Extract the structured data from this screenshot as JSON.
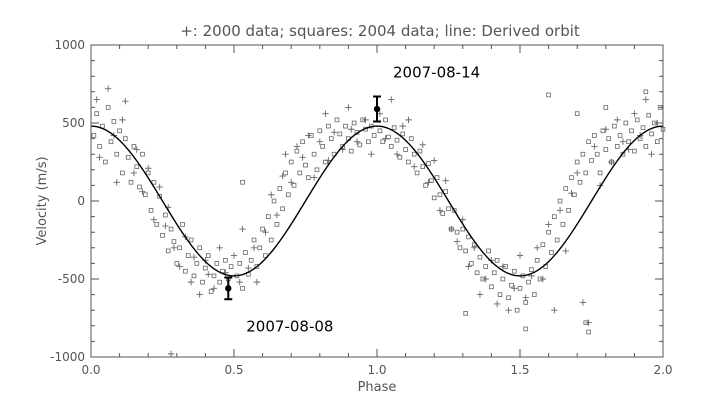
{
  "chart_data": {
    "type": "scatter",
    "title": "+: 2000 data; squares: 2004 data; line: Derived orbit",
    "xlabel": "Phase",
    "ylabel": "Velocity (m/s)",
    "xlim": [
      0.0,
      2.0
    ],
    "ylim": [
      -1000,
      1000
    ],
    "xticks": [
      {
        "value": 0.0,
        "label": "0.0"
      },
      {
        "value": 0.5,
        "label": "0.5"
      },
      {
        "value": 1.0,
        "label": "1.0"
      },
      {
        "value": 1.5,
        "label": "1.5"
      },
      {
        "value": 2.0,
        "label": "2.0"
      }
    ],
    "yticks": [
      {
        "value": 1000,
        "label": "1000"
      },
      {
        "value": 500,
        "label": "500"
      },
      {
        "value": 0,
        "label": "0"
      },
      {
        "value": -500,
        "label": "-500"
      },
      {
        "value": -1000,
        "label": "-1000"
      }
    ],
    "grid": false,
    "orbit": {
      "amplitude": 480,
      "offset": 0,
      "phase_of_max": 0.0,
      "period_in_phase": 1.0
    },
    "series": [
      {
        "name": "2000 data",
        "marker": "plus",
        "points": [
          [
            0.02,
            650
          ],
          [
            0.03,
            280
          ],
          [
            0.06,
            720
          ],
          [
            0.08,
            420
          ],
          [
            0.09,
            120
          ],
          [
            0.11,
            520
          ],
          [
            0.12,
            640
          ],
          [
            0.15,
            180
          ],
          [
            0.16,
            330
          ],
          [
            0.18,
            60
          ],
          [
            0.2,
            210
          ],
          [
            0.22,
            -120
          ],
          [
            0.24,
            90
          ],
          [
            0.26,
            -160
          ],
          [
            0.27,
            -40
          ],
          [
            0.29,
            -300
          ],
          [
            0.31,
            -420
          ],
          [
            0.33,
            -230
          ],
          [
            0.35,
            -520
          ],
          [
            0.36,
            -360
          ],
          [
            0.38,
            -600
          ],
          [
            0.4,
            -380
          ],
          [
            0.41,
            -470
          ],
          [
            0.43,
            -560
          ],
          [
            0.45,
            -300
          ],
          [
            0.47,
            -460
          ],
          [
            0.5,
            -350
          ],
          [
            0.52,
            -520
          ],
          [
            0.53,
            -180
          ],
          [
            0.55,
            -430
          ],
          [
            0.57,
            -300
          ],
          [
            0.58,
            -520
          ],
          [
            0.61,
            -200
          ],
          [
            0.63,
            40
          ],
          [
            0.65,
            -90
          ],
          [
            0.67,
            160
          ],
          [
            0.68,
            300
          ],
          [
            0.7,
            120
          ],
          [
            0.72,
            350
          ],
          [
            0.74,
            280
          ],
          [
            0.76,
            420
          ],
          [
            0.78,
            150
          ],
          [
            0.8,
            380
          ],
          [
            0.82,
            560
          ],
          [
            0.83,
            260
          ],
          [
            0.85,
            440
          ],
          [
            0.88,
            330
          ],
          [
            0.9,
            600
          ],
          [
            0.91,
            460
          ],
          [
            0.93,
            380
          ],
          [
            0.96,
            520
          ],
          [
            0.98,
            300
          ],
          [
            1.01,
            560
          ],
          [
            1.03,
            400
          ],
          [
            1.05,
            650
          ],
          [
            1.07,
            300
          ],
          [
            1.09,
            480
          ],
          [
            1.11,
            520
          ],
          [
            1.13,
            220
          ],
          [
            1.16,
            360
          ],
          [
            1.18,
            120
          ],
          [
            1.2,
            260
          ],
          [
            1.22,
            -60
          ],
          [
            1.24,
            130
          ],
          [
            1.26,
            -180
          ],
          [
            1.28,
            -260
          ],
          [
            1.3,
            -120
          ],
          [
            1.32,
            -420
          ],
          [
            1.34,
            -300
          ],
          [
            1.36,
            -600
          ],
          [
            1.38,
            -500
          ],
          [
            1.4,
            -380
          ],
          [
            1.42,
            -660
          ],
          [
            1.44,
            -420
          ],
          [
            1.46,
            -700
          ],
          [
            1.48,
            -560
          ],
          [
            1.5,
            -350
          ],
          [
            1.52,
            -620
          ],
          [
            1.54,
            -480
          ],
          [
            1.56,
            -300
          ],
          [
            1.58,
            -500
          ],
          [
            1.6,
            -150
          ],
          [
            1.62,
            -700
          ],
          [
            1.64,
            -60
          ],
          [
            1.66,
            -320
          ],
          [
            1.68,
            50
          ],
          [
            1.7,
            180
          ],
          [
            1.72,
            -650
          ],
          [
            1.74,
            -780
          ],
          [
            1.76,
            350
          ],
          [
            1.78,
            100
          ],
          [
            1.8,
            460
          ],
          [
            1.82,
            250
          ],
          [
            1.84,
            520
          ],
          [
            1.86,
            380
          ],
          [
            1.88,
            330
          ],
          [
            1.9,
            560
          ],
          [
            1.92,
            420
          ],
          [
            1.94,
            650
          ],
          [
            1.96,
            300
          ],
          [
            1.98,
            500
          ],
          [
            0.28,
            -980
          ]
        ]
      },
      {
        "name": "2004 data",
        "marker": "square",
        "points": [
          [
            0.01,
            420
          ],
          [
            0.02,
            560
          ],
          [
            0.03,
            350
          ],
          [
            0.04,
            480
          ],
          [
            0.05,
            250
          ],
          [
            0.06,
            600
          ],
          [
            0.07,
            380
          ],
          [
            0.08,
            510
          ],
          [
            0.09,
            300
          ],
          [
            0.1,
            450
          ],
          [
            0.11,
            180
          ],
          [
            0.12,
            400
          ],
          [
            0.13,
            280
          ],
          [
            0.14,
            120
          ],
          [
            0.15,
            350
          ],
          [
            0.16,
            220
          ],
          [
            0.17,
            90
          ],
          [
            0.18,
            300
          ],
          [
            0.19,
            40
          ],
          [
            0.2,
            180
          ],
          [
            0.21,
            -60
          ],
          [
            0.22,
            120
          ],
          [
            0.23,
            -150
          ],
          [
            0.24,
            30
          ],
          [
            0.25,
            -220
          ],
          [
            0.26,
            -90
          ],
          [
            0.27,
            -320
          ],
          [
            0.28,
            -180
          ],
          [
            0.29,
            -260
          ],
          [
            0.3,
            -400
          ],
          [
            0.31,
            -300
          ],
          [
            0.32,
            -150
          ],
          [
            0.33,
            -450
          ],
          [
            0.34,
            -350
          ],
          [
            0.35,
            -250
          ],
          [
            0.36,
            -480
          ],
          [
            0.37,
            -400
          ],
          [
            0.38,
            -300
          ],
          [
            0.39,
            -520
          ],
          [
            0.4,
            -430
          ],
          [
            0.41,
            -350
          ],
          [
            0.42,
            -580
          ],
          [
            0.43,
            -480
          ],
          [
            0.44,
            -400
          ],
          [
            0.45,
            -520
          ],
          [
            0.46,
            -450
          ],
          [
            0.47,
            -380
          ],
          [
            0.48,
            -500
          ],
          [
            0.49,
            -420
          ],
          [
            0.51,
            -480
          ],
          [
            0.52,
            -400
          ],
          [
            0.53,
            -560
          ],
          [
            0.54,
            -330
          ],
          [
            0.55,
            -470
          ],
          [
            0.56,
            -380
          ],
          [
            0.57,
            -250
          ],
          [
            0.58,
            -420
          ],
          [
            0.59,
            -300
          ],
          [
            0.6,
            -180
          ],
          [
            0.61,
            -350
          ],
          [
            0.62,
            -100
          ],
          [
            0.63,
            -250
          ],
          [
            0.64,
            0
          ],
          [
            0.65,
            -150
          ],
          [
            0.66,
            80
          ],
          [
            0.67,
            -50
          ],
          [
            0.68,
            180
          ],
          [
            0.69,
            40
          ],
          [
            0.7,
            250
          ],
          [
            0.71,
            100
          ],
          [
            0.72,
            320
          ],
          [
            0.73,
            180
          ],
          [
            0.74,
            380
          ],
          [
            0.75,
            230
          ],
          [
            0.76,
            150
          ],
          [
            0.77,
            420
          ],
          [
            0.78,
            300
          ],
          [
            0.79,
            200
          ],
          [
            0.8,
            450
          ],
          [
            0.81,
            350
          ],
          [
            0.82,
            250
          ],
          [
            0.83,
            480
          ],
          [
            0.84,
            400
          ],
          [
            0.85,
            300
          ],
          [
            0.86,
            520
          ],
          [
            0.87,
            430
          ],
          [
            0.88,
            350
          ],
          [
            0.89,
            480
          ],
          [
            0.9,
            400
          ],
          [
            0.91,
            320
          ],
          [
            0.92,
            500
          ],
          [
            0.93,
            440
          ],
          [
            0.94,
            360
          ],
          [
            0.95,
            520
          ],
          [
            0.96,
            460
          ],
          [
            0.97,
            380
          ],
          [
            0.98,
            480
          ],
          [
            0.99,
            420
          ],
          [
            1.01,
            450
          ],
          [
            1.02,
            380
          ],
          [
            1.03,
            520
          ],
          [
            1.04,
            410
          ],
          [
            1.05,
            350
          ],
          [
            1.06,
            470
          ],
          [
            1.07,
            390
          ],
          [
            1.08,
            280
          ],
          [
            1.09,
            430
          ],
          [
            1.1,
            330
          ],
          [
            1.11,
            250
          ],
          [
            1.12,
            400
          ],
          [
            1.13,
            300
          ],
          [
            1.14,
            180
          ],
          [
            1.15,
            320
          ],
          [
            1.16,
            220
          ],
          [
            1.17,
            100
          ],
          [
            1.18,
            240
          ],
          [
            1.19,
            130
          ],
          [
            1.2,
            20
          ],
          [
            1.21,
            150
          ],
          [
            1.22,
            40
          ],
          [
            1.23,
            -80
          ],
          [
            1.24,
            60
          ],
          [
            1.25,
            -50
          ],
          [
            1.26,
            -180
          ],
          [
            1.27,
            -60
          ],
          [
            1.28,
            -200
          ],
          [
            1.29,
            -300
          ],
          [
            1.3,
            -180
          ],
          [
            1.31,
            -320
          ],
          [
            1.32,
            -230
          ],
          [
            1.33,
            -400
          ],
          [
            1.34,
            -280
          ],
          [
            1.35,
            -460
          ],
          [
            1.36,
            -360
          ],
          [
            1.37,
            -500
          ],
          [
            1.38,
            -420
          ],
          [
            1.39,
            -320
          ],
          [
            1.4,
            -550
          ],
          [
            1.41,
            -460
          ],
          [
            1.42,
            -380
          ],
          [
            1.43,
            -600
          ],
          [
            1.44,
            -500
          ],
          [
            1.45,
            -420
          ],
          [
            1.46,
            -620
          ],
          [
            1.47,
            -540
          ],
          [
            1.48,
            -450
          ],
          [
            1.49,
            -700
          ],
          [
            1.5,
            -560
          ],
          [
            1.51,
            -480
          ],
          [
            1.52,
            -650
          ],
          [
            1.53,
            -520
          ],
          [
            1.54,
            -440
          ],
          [
            1.55,
            -600
          ],
          [
            1.56,
            -380
          ],
          [
            1.57,
            -500
          ],
          [
            1.58,
            -280
          ],
          [
            1.59,
            -420
          ],
          [
            1.6,
            -200
          ],
          [
            1.61,
            -330
          ],
          [
            1.62,
            -100
          ],
          [
            1.63,
            -250
          ],
          [
            1.64,
            0
          ],
          [
            1.65,
            -150
          ],
          [
            1.66,
            80
          ],
          [
            1.67,
            -60
          ],
          [
            1.68,
            150
          ],
          [
            1.69,
            40
          ],
          [
            1.7,
            250
          ],
          [
            1.71,
            120
          ],
          [
            1.72,
            300
          ],
          [
            1.73,
            180
          ],
          [
            1.74,
            380
          ],
          [
            1.75,
            260
          ],
          [
            1.76,
            420
          ],
          [
            1.77,
            300
          ],
          [
            1.78,
            180
          ],
          [
            1.79,
            450
          ],
          [
            1.8,
            330
          ],
          [
            1.81,
            400
          ],
          [
            1.82,
            250
          ],
          [
            1.83,
            480
          ],
          [
            1.84,
            350
          ],
          [
            1.85,
            420
          ],
          [
            1.86,
            300
          ],
          [
            1.87,
            500
          ],
          [
            1.88,
            380
          ],
          [
            1.89,
            450
          ],
          [
            1.9,
            320
          ],
          [
            1.91,
            520
          ],
          [
            1.92,
            400
          ],
          [
            1.93,
            470
          ],
          [
            1.94,
            350
          ],
          [
            1.95,
            550
          ],
          [
            1.96,
            430
          ],
          [
            1.97,
            500
          ],
          [
            1.98,
            380
          ],
          [
            1.99,
            600
          ],
          [
            2.0,
            460
          ],
          [
            1.6,
            680
          ],
          [
            1.7,
            560
          ],
          [
            1.52,
            -820
          ],
          [
            1.74,
            -840
          ],
          [
            1.31,
            -720
          ],
          [
            0.53,
            120
          ],
          [
            1.8,
            600
          ],
          [
            1.73,
            -780
          ],
          [
            1.94,
            700
          ]
        ]
      }
    ],
    "annotations": [
      {
        "label": "2007-08-14",
        "x": 1.0,
        "y": 590,
        "err": 80
      },
      {
        "label": "2007-08-08",
        "x": 0.48,
        "y": -560,
        "err": 70
      }
    ]
  },
  "colors": {
    "axis": "#555555",
    "data": "#666666",
    "orbit": "#000000",
    "annotation": "#000000"
  }
}
